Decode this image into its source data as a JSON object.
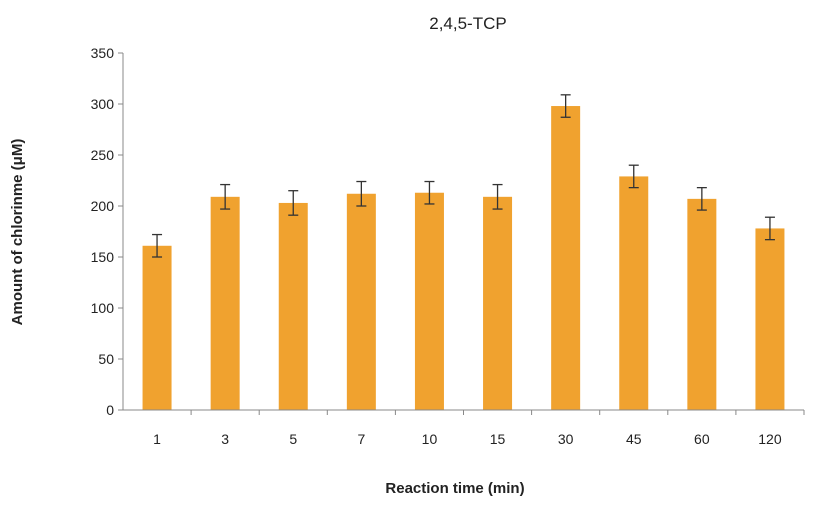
{
  "chart_data": {
    "type": "bar",
    "title": "2,4,5-TCP",
    "xlabel": "Reaction time (min)",
    "ylabel": "Amount of chlorinme (μM)",
    "categories": [
      "1",
      "3",
      "5",
      "7",
      "10",
      "15",
      "30",
      "45",
      "60",
      "120"
    ],
    "series": [
      {
        "values": [
          161,
          209,
          203,
          212,
          213,
          209,
          298,
          229,
          207,
          178
        ],
        "errors": [
          11,
          12,
          12,
          12,
          11,
          12,
          11,
          11,
          11,
          11
        ]
      }
    ],
    "ylim": [
      0,
      350
    ],
    "yticks": [
      0,
      50,
      100,
      150,
      200,
      250,
      300,
      350
    ],
    "grid": false,
    "legend": "none",
    "colors": {
      "bar": "#F0A22F",
      "axis": "#888888",
      "error_bar": "#333333",
      "text": "#222222"
    }
  }
}
